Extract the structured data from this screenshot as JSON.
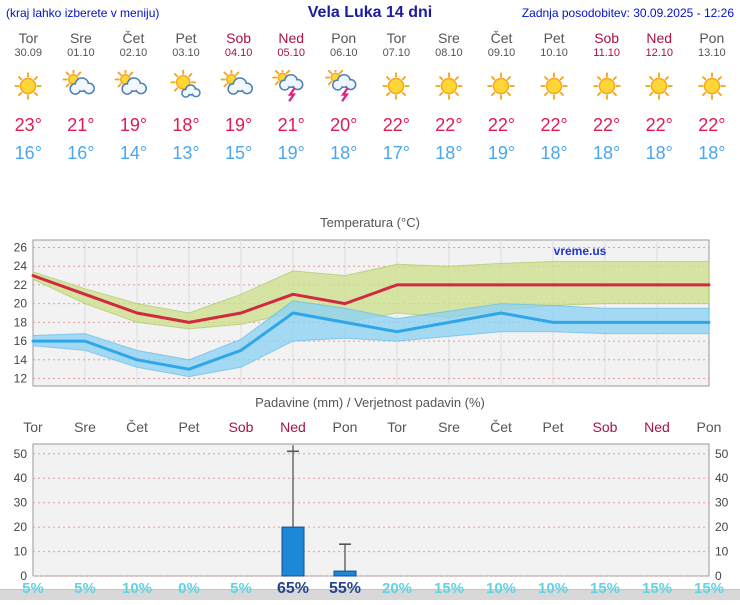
{
  "header": {
    "left_note": "(kraj lahko izberete v meniju)",
    "title": "Vela Luka 14 dni",
    "updated": "Zadnja posodobitev: 30.09.2025 - 12:26"
  },
  "colors": {
    "accent": "#0011cc",
    "weekend": "#aa1144",
    "tmax": "#e01a50",
    "tmin": "#4aa7ee",
    "grid": "#e39b9b",
    "max_line": "#d02940",
    "max_band": "#cde08e",
    "min_line": "#2ea6e8",
    "min_band": "#8ed2f2",
    "bar_fill": "#1e88d8",
    "bar_stroke": "#0d4f8b",
    "prob_normal": "#5fd4e4",
    "prob_strong": "#224488"
  },
  "days": [
    {
      "name": "Tor",
      "date": "30.09",
      "weekend": false,
      "icon": "sun",
      "tmax": "23°",
      "tmin": "16°"
    },
    {
      "name": "Sre",
      "date": "01.10",
      "weekend": false,
      "icon": "cloud-sun",
      "tmax": "21°",
      "tmin": "16°"
    },
    {
      "name": "Čet",
      "date": "02.10",
      "weekend": false,
      "icon": "cloud-sun",
      "tmax": "19°",
      "tmin": "14°"
    },
    {
      "name": "Pet",
      "date": "03.10",
      "weekend": false,
      "icon": "sun-cloud",
      "tmax": "18°",
      "tmin": "13°"
    },
    {
      "name": "Sob",
      "date": "04.10",
      "weekend": true,
      "icon": "cloud-sun",
      "tmax": "19°",
      "tmin": "15°"
    },
    {
      "name": "Ned",
      "date": "05.10",
      "weekend": true,
      "icon": "storm",
      "tmax": "21°",
      "tmin": "19°"
    },
    {
      "name": "Pon",
      "date": "06.10",
      "weekend": false,
      "icon": "storm",
      "tmax": "20°",
      "tmin": "18°"
    },
    {
      "name": "Tor",
      "date": "07.10",
      "weekend": false,
      "icon": "sun",
      "tmax": "22°",
      "tmin": "17°"
    },
    {
      "name": "Sre",
      "date": "08.10",
      "weekend": false,
      "icon": "sun",
      "tmax": "22°",
      "tmin": "18°"
    },
    {
      "name": "Čet",
      "date": "09.10",
      "weekend": false,
      "icon": "sun",
      "tmax": "22°",
      "tmin": "19°"
    },
    {
      "name": "Pet",
      "date": "10.10",
      "weekend": false,
      "icon": "sun",
      "tmax": "22°",
      "tmin": "18°"
    },
    {
      "name": "Sob",
      "date": "11.10",
      "weekend": true,
      "icon": "sun",
      "tmax": "22°",
      "tmin": "18°"
    },
    {
      "name": "Ned",
      "date": "12.10",
      "weekend": true,
      "icon": "sun",
      "tmax": "22°",
      "tmin": "18°"
    },
    {
      "name": "Pon",
      "date": "13.10",
      "weekend": false,
      "icon": "sun",
      "tmax": "22°",
      "tmin": "18°"
    }
  ],
  "chart_data": [
    {
      "type": "line",
      "title": "Temperatura (°C)",
      "watermark": "vreme.us",
      "categories": [
        "Tor",
        "Sre",
        "Čet",
        "Pet",
        "Sob",
        "Ned",
        "Pon",
        "Tor",
        "Sre",
        "Čet",
        "Pet",
        "Sob",
        "Ned",
        "Pon"
      ],
      "ylim": [
        11.2,
        26.8
      ],
      "yticks": [
        12,
        14,
        16,
        18,
        20,
        22,
        24,
        26
      ],
      "grid": true,
      "series": [
        {
          "name": "max-temperatura",
          "values": [
            23,
            21,
            19,
            18,
            19,
            21,
            20,
            22,
            22,
            22,
            22,
            22,
            22,
            22
          ],
          "band_high": [
            23.4,
            21.6,
            20.0,
            19.0,
            21.0,
            23.5,
            23.0,
            24.2,
            24.0,
            24.3,
            24.5,
            24.5,
            24.5,
            24.5
          ],
          "band_low": [
            22.6,
            20.0,
            18.0,
            17.3,
            17.8,
            19.0,
            18.0,
            19.0,
            18.5,
            19.3,
            19.8,
            20.0,
            20.0,
            20.0
          ]
        },
        {
          "name": "min-temperatura",
          "values": [
            16,
            16,
            14,
            13,
            15,
            19,
            18,
            17,
            18,
            19,
            18,
            18,
            18,
            18
          ],
          "band_high": [
            16.6,
            16.8,
            15.0,
            14.0,
            16.2,
            20.3,
            19.5,
            18.4,
            19.2,
            20.0,
            19.8,
            19.5,
            19.5,
            19.5
          ],
          "band_low": [
            15.5,
            15.0,
            13.2,
            12.2,
            13.2,
            16.0,
            16.3,
            16.0,
            16.5,
            17.0,
            17.0,
            16.8,
            16.8,
            16.8
          ]
        }
      ]
    },
    {
      "type": "bar",
      "title": "Padavine (mm) / Verjetnost padavin (%)",
      "categories": [
        "Tor",
        "Sre",
        "Čet",
        "Pet",
        "Sob",
        "Ned",
        "Pon",
        "Tor",
        "Sre",
        "Čet",
        "Pet",
        "Sob",
        "Ned",
        "Pon"
      ],
      "weekend": [
        false,
        false,
        false,
        false,
        true,
        true,
        false,
        false,
        false,
        false,
        false,
        true,
        true,
        false
      ],
      "ylim": [
        0,
        54
      ],
      "yticks": [
        0,
        10,
        20,
        30,
        40,
        50
      ],
      "values": [
        0,
        0,
        0,
        0,
        0,
        20,
        2,
        0,
        0,
        0,
        0,
        0,
        0,
        0
      ],
      "whiskers": [
        {
          "day": 5,
          "from": 20,
          "to": 53.5,
          "cap": 51
        },
        {
          "day": 6,
          "from": 2,
          "to": 13,
          "cap": 13
        }
      ],
      "probabilities": [
        "5%",
        "5%",
        "10%",
        "0%",
        "5%",
        "65%",
        "55%",
        "20%",
        "15%",
        "10%",
        "10%",
        "15%",
        "15%",
        "15%"
      ],
      "prob_strong": [
        false,
        false,
        false,
        false,
        false,
        true,
        true,
        false,
        false,
        false,
        false,
        false,
        false,
        false
      ]
    }
  ]
}
